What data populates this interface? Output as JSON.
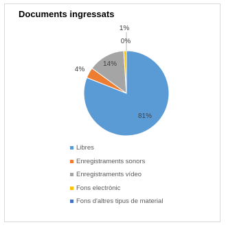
{
  "chart_data": {
    "type": "pie",
    "title": "Documents ingressats",
    "slices": [
      {
        "name": "Libres",
        "value": 81,
        "label": "81%",
        "color": "#5b9bd5"
      },
      {
        "name": "Enregistraments sonors",
        "value": 4,
        "label": "4%",
        "color": "#ed7d31"
      },
      {
        "name": "Enregistraments vídeo",
        "value": 14,
        "label": "14%",
        "color": "#a5a5a5"
      },
      {
        "name": "Fons electrònic",
        "value": 1,
        "label": "1%",
        "color": "#ffc000"
      },
      {
        "name": "Fons d'altres tipus de material",
        "value": 0,
        "label": "0%",
        "color": "#4472c4"
      }
    ],
    "legend_position": "bottom"
  }
}
